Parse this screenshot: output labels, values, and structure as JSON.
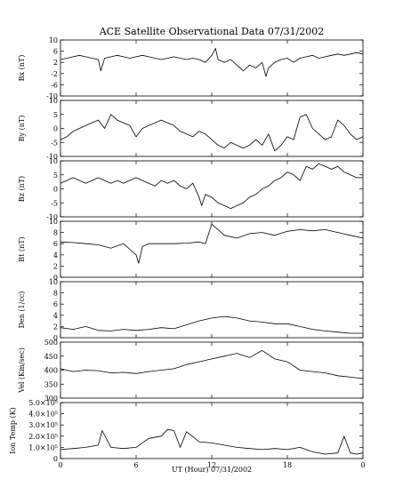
{
  "figure": {
    "title": "ACE Satellite Observational Data   07/31/2002",
    "xlabel": "UT (Hour)   07/31/2002"
  },
  "chart_data": [
    {
      "type": "line",
      "id": "bx",
      "ylabel": "Bx (nT)",
      "ylim": [
        -10,
        10
      ],
      "yticks": [
        "10",
        "6",
        "2",
        "-2",
        "-6",
        "-10"
      ],
      "ytick_values": [
        10,
        6,
        2,
        -2,
        -6,
        -10
      ],
      "xlim": [
        0,
        24
      ],
      "xticks": [
        "0",
        "6",
        "12",
        "18",
        "0"
      ],
      "xtick_values": [
        0,
        6,
        12,
        18,
        24
      ],
      "series": [
        {
          "color": "#000000",
          "x": [
            0,
            0.5,
            1,
            1.5,
            2,
            2.5,
            3,
            3.2,
            3.5,
            4,
            4.5,
            5,
            5.5,
            6,
            6.5,
            7,
            7.5,
            8,
            8.5,
            9,
            9.5,
            10,
            10.5,
            11,
            11.5,
            12,
            12.3,
            12.5,
            13,
            13.5,
            14,
            14.5,
            15,
            15.5,
            16,
            16.3,
            16.5,
            17,
            17.5,
            18,
            18.5,
            19,
            19.5,
            20,
            20.5,
            21,
            21.5,
            22,
            22.5,
            23,
            23.5,
            24
          ],
          "y": [
            3,
            3.5,
            4,
            4.5,
            4,
            3.5,
            3,
            -1,
            3.5,
            4,
            4.5,
            4,
            3.5,
            4,
            4.5,
            4,
            3.5,
            3,
            3.5,
            4,
            3.5,
            3,
            3.5,
            3,
            2,
            4.5,
            7,
            3,
            2,
            3,
            1,
            -1,
            1,
            0,
            2,
            -3,
            0,
            2,
            3,
            3.5,
            2,
            3.5,
            4,
            4.5,
            3.5,
            4,
            4.5,
            5,
            4.5,
            5,
            5.5,
            5
          ]
        }
      ]
    },
    {
      "type": "line",
      "id": "by",
      "ylabel": "By (nT)",
      "ylim": [
        -10,
        10
      ],
      "yticks": [
        "10",
        "5",
        "0",
        "-5",
        "-10"
      ],
      "ytick_values": [
        10,
        5,
        0,
        -5,
        -10
      ],
      "xlim": [
        0,
        24
      ],
      "xticks": [
        "0",
        "6",
        "12",
        "18",
        "0"
      ],
      "xtick_values": [
        0,
        6,
        12,
        18,
        24
      ],
      "series": [
        {
          "color": "#000000",
          "x": [
            0,
            0.5,
            1,
            1.5,
            2,
            2.5,
            3,
            3.5,
            4,
            4.5,
            5,
            5.5,
            6,
            6.5,
            7,
            7.5,
            8,
            8.5,
            9,
            9.5,
            10,
            10.5,
            11,
            11.5,
            12,
            12.5,
            13,
            13.5,
            14,
            14.5,
            15,
            15.5,
            16,
            16.5,
            17,
            17.5,
            18,
            18.5,
            19,
            19.5,
            20,
            20.5,
            21,
            21.5,
            22,
            22.5,
            23,
            23.5,
            24
          ],
          "y": [
            -4,
            -3,
            -1,
            0,
            1,
            2,
            3,
            0,
            5,
            3,
            2,
            1,
            -3,
            0,
            1,
            2,
            3,
            2,
            1,
            -1,
            -2,
            -3,
            -1,
            -2,
            -4,
            -6,
            -7,
            -5,
            -6,
            -7,
            -6,
            -4,
            -6,
            -2,
            -8,
            -6,
            -3,
            -4,
            4,
            5,
            0,
            -2,
            -4,
            -3,
            3,
            1,
            -2,
            -4,
            -3
          ]
        }
      ]
    },
    {
      "type": "line",
      "id": "bz",
      "ylabel": "Bz (nT)",
      "ylim": [
        -10,
        10
      ],
      "yticks": [
        "10",
        "5",
        "0",
        "-5",
        "-10"
      ],
      "ytick_values": [
        10,
        5,
        0,
        -5,
        -10
      ],
      "xlim": [
        0,
        24
      ],
      "xticks": [
        "0",
        "6",
        "12",
        "18",
        "0"
      ],
      "xtick_values": [
        0,
        6,
        12,
        18,
        24
      ],
      "series": [
        {
          "color": "#000000",
          "x": [
            0,
            0.5,
            1,
            1.5,
            2,
            2.5,
            3,
            3.5,
            4,
            4.5,
            5,
            5.5,
            6,
            6.5,
            7,
            7.5,
            8,
            8.5,
            9,
            9.5,
            10,
            10.5,
            11,
            11.2,
            11.5,
            12,
            12.5,
            13,
            13.5,
            14,
            14.5,
            15,
            15.5,
            16,
            16.5,
            17,
            17.5,
            18,
            18.5,
            19,
            19.5,
            20,
            20.5,
            21,
            21.5,
            22,
            22.5,
            23,
            23.5,
            24
          ],
          "y": [
            2,
            3,
            4,
            3,
            2,
            3,
            4,
            3,
            2,
            3,
            2,
            3,
            4,
            3,
            2,
            1,
            3,
            2,
            3,
            1,
            0,
            2,
            -3,
            -6,
            -2,
            -3,
            -5,
            -6,
            -7,
            -6,
            -5,
            -3,
            -2,
            0,
            1,
            3,
            4,
            6,
            5,
            3,
            8,
            7,
            9,
            8,
            7,
            8,
            6,
            5,
            4,
            4
          ]
        }
      ]
    },
    {
      "type": "line",
      "id": "bt",
      "ylabel": "Bt (nT)",
      "ylim": [
        0,
        10
      ],
      "yticks": [
        "10",
        "8",
        "6",
        "4",
        "2",
        "0"
      ],
      "ytick_values": [
        10,
        8,
        6,
        4,
        2,
        0
      ],
      "xlim": [
        0,
        24
      ],
      "xticks": [
        "0",
        "6",
        "12",
        "18",
        "0"
      ],
      "xtick_values": [
        0,
        6,
        12,
        18,
        24
      ],
      "series": [
        {
          "color": "#000000",
          "x": [
            0,
            1,
            2,
            3,
            4,
            5,
            5.5,
            6,
            6.2,
            6.5,
            7,
            8,
            9,
            10,
            11,
            11.5,
            12,
            12.5,
            13,
            14,
            15,
            16,
            17,
            18,
            19,
            20,
            21,
            22,
            23,
            24
          ],
          "y": [
            6.3,
            6.2,
            6,
            5.8,
            5.2,
            6,
            5,
            4,
            2.5,
            5.5,
            6,
            6,
            6,
            6.1,
            6.3,
            6,
            9.5,
            8.5,
            7.5,
            7,
            7.8,
            8,
            7.5,
            8.2,
            8.5,
            8.3,
            8.5,
            8,
            7.5,
            7
          ]
        }
      ]
    },
    {
      "type": "line",
      "id": "den",
      "ylabel": "Den (1/cc)",
      "ylim": [
        0,
        10
      ],
      "yticks": [
        "10",
        "8",
        "6",
        "4",
        "2",
        "0"
      ],
      "ytick_values": [
        10,
        8,
        6,
        4,
        2,
        0
      ],
      "xlim": [
        0,
        24
      ],
      "xticks": [
        "0",
        "6",
        "12",
        "18",
        "0"
      ],
      "xtick_values": [
        0,
        6,
        12,
        18,
        24
      ],
      "series": [
        {
          "color": "#000000",
          "x": [
            0,
            1,
            2,
            3,
            4,
            5,
            6,
            7,
            8,
            9,
            10,
            11,
            12,
            13,
            14,
            15,
            16,
            17,
            18,
            19,
            20,
            21,
            22,
            23,
            24
          ],
          "y": [
            1.8,
            1.5,
            2,
            1.3,
            1.2,
            1.5,
            1.3,
            1.5,
            1.8,
            1.6,
            2.3,
            3,
            3.5,
            3.8,
            3.5,
            3,
            2.8,
            2.5,
            2.5,
            2,
            1.5,
            1.2,
            1,
            0.8,
            0.8
          ]
        }
      ]
    },
    {
      "type": "line",
      "id": "vel",
      "ylabel": "Vel (Km/sec)",
      "ylim": [
        300,
        500
      ],
      "yticks": [
        "500",
        "450",
        "400",
        "350",
        "300"
      ],
      "ytick_values": [
        500,
        450,
        400,
        350,
        300
      ],
      "xlim": [
        0,
        24
      ],
      "xticks": [
        "0",
        "6",
        "12",
        "18",
        "0"
      ],
      "xtick_values": [
        0,
        6,
        12,
        18,
        24
      ],
      "series": [
        {
          "color": "#000000",
          "x": [
            0,
            1,
            2,
            3,
            4,
            5,
            6,
            7,
            8,
            9,
            10,
            11,
            12,
            13,
            14,
            15,
            16,
            17,
            18,
            19,
            20,
            21,
            22,
            23,
            24
          ],
          "y": [
            405,
            395,
            400,
            398,
            390,
            392,
            388,
            395,
            400,
            405,
            420,
            430,
            440,
            450,
            460,
            445,
            470,
            440,
            430,
            400,
            395,
            390,
            380,
            375,
            370
          ]
        }
      ]
    },
    {
      "type": "line",
      "id": "iontemp",
      "ylabel": "Ion Temp (K)",
      "ylim": [
        0,
        5
      ],
      "yticks": [
        "5.0×10⁵",
        "4.0×10⁵",
        "3.0×10⁵",
        "2.0×10⁵",
        "1.0×10⁵",
        "0"
      ],
      "ytick_values": [
        5,
        4,
        3,
        2,
        1,
        0
      ],
      "xlim": [
        0,
        24
      ],
      "xticks": [
        "0",
        "6",
        "12",
        "18",
        "0"
      ],
      "xtick_values": [
        0,
        6,
        12,
        18,
        24
      ],
      "series": [
        {
          "color": "#000000",
          "x": [
            0,
            1,
            2,
            3,
            3.3,
            4,
            5,
            6,
            7,
            8,
            8.5,
            9,
            9.5,
            10,
            11,
            12,
            13,
            14,
            15,
            16,
            17,
            18,
            19,
            20,
            21,
            22,
            22.5,
            23,
            23.5,
            24
          ],
          "y": [
            0.8,
            0.9,
            1,
            1.2,
            2.5,
            1,
            0.9,
            1,
            1.8,
            2,
            2.6,
            2.5,
            1,
            2.4,
            1.5,
            1.4,
            1.2,
            1,
            0.9,
            0.8,
            0.9,
            0.8,
            1,
            0.6,
            0.4,
            0.5,
            2,
            0.5,
            0.4,
            0.5
          ]
        }
      ]
    }
  ]
}
